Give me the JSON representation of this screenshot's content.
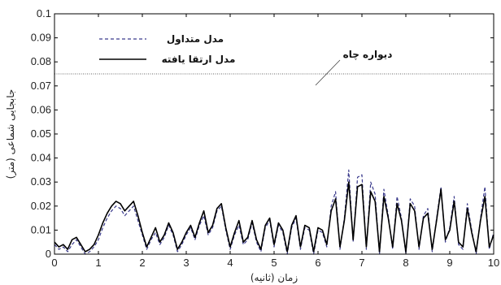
{
  "chart_data": {
    "type": "line",
    "xlabel": "زمان (ثانیه)",
    "ylabel": "جابجایی شماعی (متر)",
    "xlim": [
      0,
      10
    ],
    "ylim": [
      0,
      0.1
    ],
    "xticks": [
      "0",
      "1",
      "2",
      "3",
      "4",
      "5",
      "6",
      "7",
      "8",
      "9",
      "10"
    ],
    "yticks": [
      "0",
      "0.01",
      "0.02",
      "0.03",
      "0.04",
      "0.05",
      "0.06",
      "0.07",
      "0.08",
      "0.09",
      "0.1"
    ],
    "legend_position": "top-left",
    "grid": false,
    "series": [
      {
        "name": "مدل متداول",
        "style": "dashed",
        "color": "#3a3a8c",
        "x": [
          0,
          0.1,
          0.2,
          0.3,
          0.4,
          0.5,
          0.6,
          0.7,
          0.8,
          0.9,
          1.0,
          1.1,
          1.2,
          1.3,
          1.4,
          1.5,
          1.6,
          1.7,
          1.8,
          1.9,
          2.0,
          2.1,
          2.2,
          2.3,
          2.4,
          2.5,
          2.6,
          2.7,
          2.8,
          2.9,
          3.0,
          3.1,
          3.2,
          3.3,
          3.4,
          3.5,
          3.6,
          3.7,
          3.8,
          3.9,
          4.0,
          4.1,
          4.2,
          4.3,
          4.4,
          4.5,
          4.6,
          4.7,
          4.8,
          4.9,
          5.0,
          5.1,
          5.2,
          5.3,
          5.4,
          5.5,
          5.6,
          5.7,
          5.8,
          5.9,
          6.0,
          6.1,
          6.2,
          6.3,
          6.4,
          6.5,
          6.6,
          6.7,
          6.8,
          6.9,
          7.0,
          7.1,
          7.2,
          7.3,
          7.4,
          7.5,
          7.6,
          7.7,
          7.8,
          7.9,
          8.0,
          8.1,
          8.2,
          8.3,
          8.4,
          8.5,
          8.6,
          8.7,
          8.8,
          8.9,
          9.0,
          9.1,
          9.2,
          9.3,
          9.4,
          9.5,
          9.6,
          9.7,
          9.8,
          9.9,
          10.0
        ],
        "values": [
          0.004,
          0.002,
          0.003,
          0.001,
          0.004,
          0.006,
          0.003,
          0.0,
          0.001,
          0.003,
          0.006,
          0.011,
          0.015,
          0.018,
          0.02,
          0.019,
          0.016,
          0.018,
          0.02,
          0.014,
          0.008,
          0.002,
          0.006,
          0.009,
          0.004,
          0.007,
          0.012,
          0.008,
          0.001,
          0.004,
          0.008,
          0.011,
          0.006,
          0.012,
          0.016,
          0.008,
          0.011,
          0.018,
          0.02,
          0.01,
          0.002,
          0.008,
          0.012,
          0.004,
          0.006,
          0.013,
          0.005,
          0.001,
          0.011,
          0.014,
          0.003,
          0.012,
          0.009,
          0.0,
          0.011,
          0.015,
          0.002,
          0.011,
          0.01,
          0.0,
          0.01,
          0.009,
          0.003,
          0.02,
          0.026,
          0.002,
          0.015,
          0.035,
          0.005,
          0.032,
          0.033,
          0.002,
          0.03,
          0.025,
          0.0,
          0.027,
          0.016,
          0.002,
          0.024,
          0.015,
          0.0,
          0.023,
          0.02,
          0.002,
          0.016,
          0.019,
          0.001,
          0.015,
          0.028,
          0.005,
          0.011,
          0.024,
          0.004,
          0.002,
          0.021,
          0.01,
          0.0,
          0.015,
          0.028,
          0.002,
          0.009
        ]
      },
      {
        "name": "مدل ارتقا یافته",
        "style": "solid",
        "color": "#000000",
        "x": [
          0,
          0.1,
          0.2,
          0.3,
          0.4,
          0.5,
          0.6,
          0.7,
          0.8,
          0.9,
          1.0,
          1.1,
          1.2,
          1.3,
          1.4,
          1.5,
          1.6,
          1.7,
          1.8,
          1.9,
          2.0,
          2.1,
          2.2,
          2.3,
          2.4,
          2.5,
          2.6,
          2.7,
          2.8,
          2.9,
          3.0,
          3.1,
          3.2,
          3.3,
          3.4,
          3.5,
          3.6,
          3.7,
          3.8,
          3.9,
          4.0,
          4.1,
          4.2,
          4.3,
          4.4,
          4.5,
          4.6,
          4.7,
          4.8,
          4.9,
          5.0,
          5.1,
          5.2,
          5.3,
          5.4,
          5.5,
          5.6,
          5.7,
          5.8,
          5.9,
          6.0,
          6.1,
          6.2,
          6.3,
          6.4,
          6.5,
          6.6,
          6.7,
          6.8,
          6.9,
          7.0,
          7.1,
          7.2,
          7.3,
          7.4,
          7.5,
          7.6,
          7.7,
          7.8,
          7.9,
          8.0,
          8.1,
          8.2,
          8.3,
          8.4,
          8.5,
          8.6,
          8.7,
          8.8,
          8.9,
          9.0,
          9.1,
          9.2,
          9.3,
          9.4,
          9.5,
          9.6,
          9.7,
          9.8,
          9.9,
          10.0
        ],
        "values": [
          0.005,
          0.003,
          0.004,
          0.002,
          0.006,
          0.007,
          0.004,
          0.001,
          0.002,
          0.004,
          0.008,
          0.013,
          0.017,
          0.02,
          0.022,
          0.021,
          0.018,
          0.02,
          0.022,
          0.016,
          0.009,
          0.003,
          0.007,
          0.011,
          0.005,
          0.008,
          0.013,
          0.009,
          0.002,
          0.005,
          0.009,
          0.012,
          0.007,
          0.013,
          0.018,
          0.009,
          0.012,
          0.019,
          0.021,
          0.011,
          0.003,
          0.009,
          0.014,
          0.005,
          0.007,
          0.014,
          0.006,
          0.002,
          0.012,
          0.015,
          0.004,
          0.013,
          0.01,
          0.001,
          0.012,
          0.016,
          0.003,
          0.012,
          0.011,
          0.001,
          0.011,
          0.01,
          0.004,
          0.018,
          0.023,
          0.003,
          0.014,
          0.03,
          0.006,
          0.028,
          0.029,
          0.003,
          0.026,
          0.022,
          0.001,
          0.024,
          0.015,
          0.003,
          0.021,
          0.014,
          0.001,
          0.021,
          0.018,
          0.003,
          0.015,
          0.017,
          0.002,
          0.014,
          0.027,
          0.006,
          0.01,
          0.022,
          0.005,
          0.003,
          0.019,
          0.009,
          0.001,
          0.014,
          0.024,
          0.003,
          0.008
        ]
      }
    ],
    "annotations": [
      {
        "label": "دیواره چاه",
        "y": 0.075,
        "style": "dotted"
      }
    ]
  }
}
